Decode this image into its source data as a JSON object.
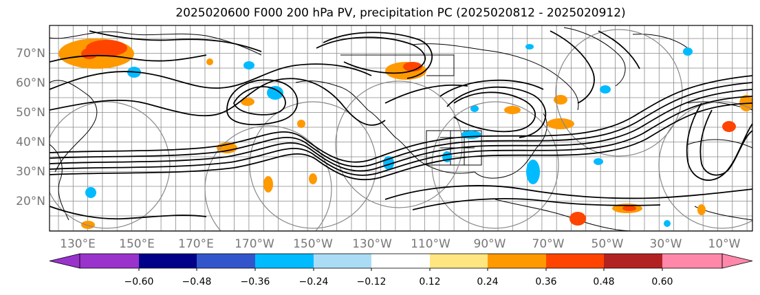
{
  "title": "2025020600 F000 200 hPa PV, precipitation PC (2025020812 - 2025020912)",
  "lat_labels": [
    "70°N",
    "60°N",
    "50°N",
    "40°N",
    "30°N",
    "20°N"
  ],
  "lon_labels": [
    "130°E",
    "150°E",
    "170°E",
    "170°W",
    "150°W",
    "130°W",
    "110°W",
    "90°W",
    "70°W",
    "50°W",
    "30°W",
    "10°W"
  ],
  "colorbar": {
    "ticks": [
      "−0.60",
      "−0.48",
      "−0.36",
      "−0.24",
      "−0.12",
      "0.12",
      "0.24",
      "0.36",
      "0.48",
      "0.60"
    ],
    "colors": [
      "#9933cc",
      "#000088",
      "#3355cc",
      "#00bbff",
      "#aaddf5",
      "#ffffff",
      "#ffe680",
      "#ff9900",
      "#ff4400",
      "#b22222",
      "#ff88aa"
    ]
  }
}
